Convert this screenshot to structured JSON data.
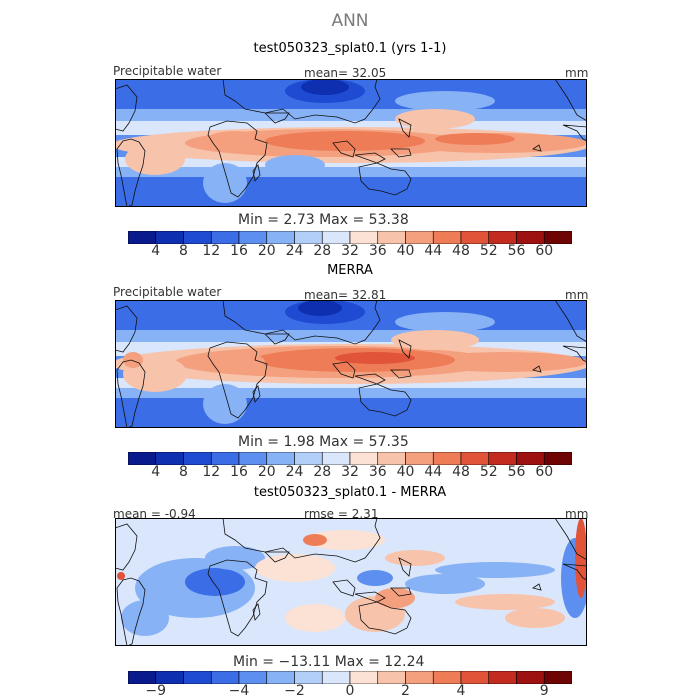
{
  "figure": {
    "title": "ANN"
  },
  "panels": [
    {
      "title": "test050323_splat0.1 (yrs 1-1)",
      "left_label": "Precipitable water",
      "center_label": "mean=   32.05",
      "right_label": "mm",
      "minmax_label": "Min =    2.73  Max =   53.38",
      "colorbar_ticks": [
        "4",
        "8",
        "12",
        "16",
        "20",
        "24",
        "28",
        "32",
        "36",
        "40",
        "44",
        "48",
        "52",
        "56",
        "60"
      ]
    },
    {
      "title": "MERRA",
      "left_label": "Precipitable water",
      "center_label": "mean=   32.81",
      "right_label": "mm",
      "minmax_label": "Min =    1.98  Max =   57.35",
      "colorbar_ticks": [
        "4",
        "8",
        "12",
        "16",
        "20",
        "24",
        "28",
        "32",
        "36",
        "40",
        "44",
        "48",
        "52",
        "56",
        "60"
      ]
    },
    {
      "title": "test050323_splat0.1 - MERRA",
      "left_label": "mean =   -0.94",
      "center_label": "rmse =    2.31",
      "right_label": "mm",
      "minmax_label": "Min = −13.11  Max =   12.24",
      "colorbar_ticks": [
        "−9",
        "−4",
        "−2",
        "0",
        "2",
        "4",
        "9"
      ]
    }
  ],
  "chart_data": [
    {
      "type": "heatmap",
      "title": "test050323_splat0.1 (yrs 1-1)",
      "variable": "Precipitable water",
      "units": "mm",
      "mean": 32.05,
      "min": 2.73,
      "max": 53.38,
      "colorbar_levels": [
        4,
        8,
        12,
        16,
        20,
        24,
        28,
        32,
        36,
        40,
        44,
        48,
        52,
        56,
        60
      ],
      "colors": [
        "#081a8c",
        "#0d2fb0",
        "#1f4bd2",
        "#3a6de6",
        "#5c8ff0",
        "#88b2f6",
        "#b2cff9",
        "#d9e6fb",
        "#fbe2d4",
        "#f8c3ab",
        "#f4a07f",
        "#ee7c57",
        "#e1543a",
        "#c42b1f",
        "#9d1210",
        "#6e0504"
      ]
    },
    {
      "type": "heatmap",
      "title": "MERRA",
      "variable": "Precipitable water",
      "units": "mm",
      "mean": 32.81,
      "min": 1.98,
      "max": 57.35,
      "colorbar_levels": [
        4,
        8,
        12,
        16,
        20,
        24,
        28,
        32,
        36,
        40,
        44,
        48,
        52,
        56,
        60
      ],
      "colors": [
        "#081a8c",
        "#0d2fb0",
        "#1f4bd2",
        "#3a6de6",
        "#5c8ff0",
        "#88b2f6",
        "#b2cff9",
        "#d9e6fb",
        "#fbe2d4",
        "#f8c3ab",
        "#f4a07f",
        "#ee7c57",
        "#e1543a",
        "#c42b1f",
        "#9d1210",
        "#6e0504"
      ]
    },
    {
      "type": "heatmap",
      "title": "test050323_splat0.1 - MERRA",
      "units": "mm",
      "mean": -0.94,
      "rmse": 2.31,
      "min": -13.11,
      "max": 12.24,
      "colorbar_levels": [
        -9,
        -4,
        -2,
        0,
        2,
        4,
        9
      ],
      "colorbar_labeled_edges": [
        1,
        4,
        6,
        8,
        10,
        12,
        15
      ],
      "colors": [
        "#081a8c",
        "#0d2fb0",
        "#1f4bd2",
        "#3a6de6",
        "#5c8ff0",
        "#88b2f6",
        "#b2cff9",
        "#d9e6fb",
        "#fbe2d4",
        "#f8c3ab",
        "#f4a07f",
        "#ee7c57",
        "#e1543a",
        "#c42b1f",
        "#9d1210",
        "#6e0504"
      ]
    }
  ]
}
